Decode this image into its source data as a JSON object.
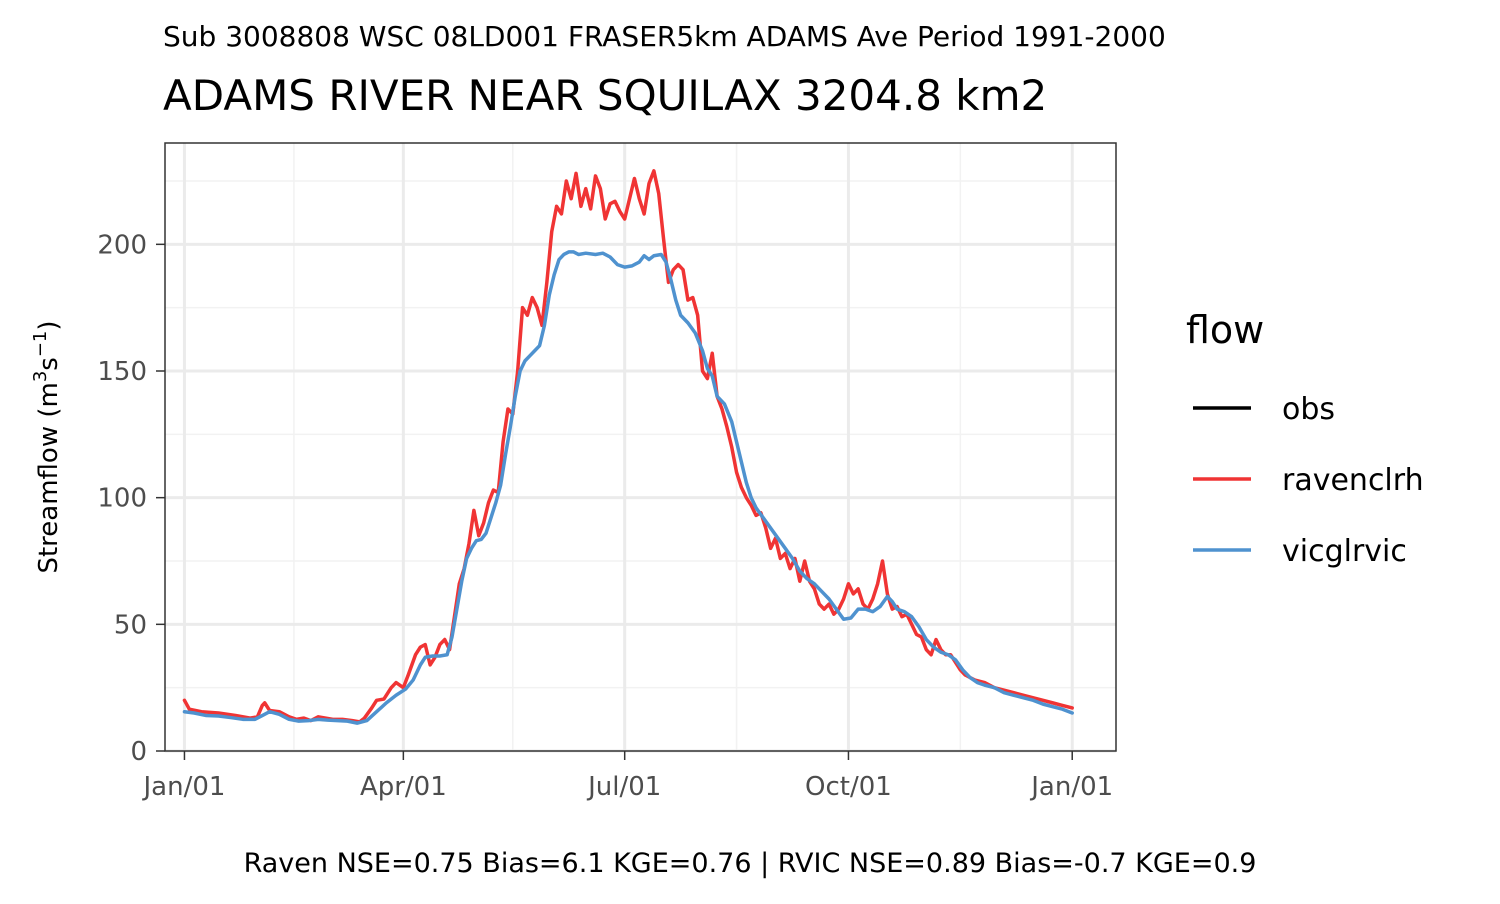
{
  "chart_data": {
    "type": "line",
    "subtitle_top": "Sub 3008808 WSC 08LD001 FRASER5km ADAMS Ave Period 1991-2000",
    "title": "ADAMS RIVER NEAR SQUILAX 3204.8 km2",
    "ylabel": "Streamflow (m",
    "ylabel_sup1": "3",
    "ylabel_mid": "s",
    "ylabel_sup2": "−1",
    "ylabel_end": ")",
    "xlabel": "",
    "footer": "Raven NSE=0.75 Bias=6.1 KGE=0.76 | RVIC NSE=0.89 Bias=-0.7 KGE=0.9",
    "ylim": [
      0,
      240
    ],
    "y_ticks": [
      0,
      50,
      100,
      150,
      200
    ],
    "x_ticks": [
      {
        "label": "Jan/01",
        "day": 1
      },
      {
        "label": "Apr/01",
        "day": 91
      },
      {
        "label": "Jul/01",
        "day": 182
      },
      {
        "label": "Oct/01",
        "day": 274
      },
      {
        "label": "Jan/01",
        "day": 366
      }
    ],
    "x_minor_days": [
      46,
      136,
      228,
      320
    ],
    "xlim_days": [
      -7,
      384
    ],
    "grid": true,
    "legend": {
      "title": "flow",
      "placement": "right",
      "entries": [
        {
          "name": "obs",
          "color": "#000000"
        },
        {
          "name": "ravenclrh",
          "color": "#f03434"
        },
        {
          "name": "vicglrvic",
          "color": "#4f92cf"
        }
      ]
    },
    "series": [
      {
        "name": "ravenclrh",
        "color": "#f03434",
        "points": [
          [
            1,
            20
          ],
          [
            3,
            16.5
          ],
          [
            8,
            15.5
          ],
          [
            15,
            15
          ],
          [
            22,
            14
          ],
          [
            28,
            13
          ],
          [
            31,
            13.5
          ],
          [
            33,
            18
          ],
          [
            34,
            19
          ],
          [
            36,
            16
          ],
          [
            40,
            15.5
          ],
          [
            44,
            13.5
          ],
          [
            47,
            12.5
          ],
          [
            50,
            13
          ],
          [
            53,
            12
          ],
          [
            56,
            13.5
          ],
          [
            59,
            13
          ],
          [
            62,
            12.5
          ],
          [
            66,
            12.5
          ],
          [
            70,
            12
          ],
          [
            73,
            11.5
          ],
          [
            75,
            13
          ],
          [
            78,
            17
          ],
          [
            80,
            20
          ],
          [
            83,
            20.5
          ],
          [
            86,
            25
          ],
          [
            88,
            27
          ],
          [
            91,
            25
          ],
          [
            93,
            30
          ],
          [
            96,
            38
          ],
          [
            98,
            41
          ],
          [
            100,
            42
          ],
          [
            102,
            34
          ],
          [
            104,
            37
          ],
          [
            106,
            42
          ],
          [
            108,
            44
          ],
          [
            110,
            40
          ],
          [
            112,
            53
          ],
          [
            114,
            66
          ],
          [
            116,
            72
          ],
          [
            118,
            82
          ],
          [
            120,
            95
          ],
          [
            122,
            85
          ],
          [
            124,
            90
          ],
          [
            126,
            98
          ],
          [
            128,
            103
          ],
          [
            130,
            102
          ],
          [
            132,
            122
          ],
          [
            134,
            135
          ],
          [
            136,
            133
          ],
          [
            138,
            150
          ],
          [
            140,
            175
          ],
          [
            142,
            172
          ],
          [
            144,
            179
          ],
          [
            146,
            175
          ],
          [
            148,
            168
          ],
          [
            150,
            185
          ],
          [
            152,
            205
          ],
          [
            154,
            215
          ],
          [
            156,
            212
          ],
          [
            158,
            225
          ],
          [
            160,
            218
          ],
          [
            162,
            228
          ],
          [
            164,
            215
          ],
          [
            166,
            222
          ],
          [
            168,
            214
          ],
          [
            170,
            227
          ],
          [
            172,
            222
          ],
          [
            174,
            210
          ],
          [
            176,
            216
          ],
          [
            178,
            217
          ],
          [
            180,
            213
          ],
          [
            182,
            210
          ],
          [
            184,
            218
          ],
          [
            186,
            226
          ],
          [
            188,
            218
          ],
          [
            190,
            212
          ],
          [
            192,
            224
          ],
          [
            194,
            229
          ],
          [
            196,
            220
          ],
          [
            198,
            202
          ],
          [
            200,
            185
          ],
          [
            202,
            190
          ],
          [
            204,
            192
          ],
          [
            206,
            190
          ],
          [
            208,
            178
          ],
          [
            210,
            179
          ],
          [
            212,
            172
          ],
          [
            214,
            150
          ],
          [
            216,
            147
          ],
          [
            218,
            157
          ],
          [
            220,
            140
          ],
          [
            222,
            135
          ],
          [
            224,
            128
          ],
          [
            226,
            120
          ],
          [
            228,
            110
          ],
          [
            230,
            104
          ],
          [
            232,
            100
          ],
          [
            234,
            97
          ],
          [
            236,
            93
          ],
          [
            238,
            94
          ],
          [
            240,
            88
          ],
          [
            242,
            80
          ],
          [
            244,
            84
          ],
          [
            246,
            76
          ],
          [
            248,
            78
          ],
          [
            250,
            72
          ],
          [
            252,
            76
          ],
          [
            254,
            67
          ],
          [
            256,
            75
          ],
          [
            258,
            67
          ],
          [
            260,
            64
          ],
          [
            262,
            58
          ],
          [
            264,
            56
          ],
          [
            266,
            58
          ],
          [
            268,
            54
          ],
          [
            270,
            56
          ],
          [
            272,
            60
          ],
          [
            274,
            66
          ],
          [
            276,
            62
          ],
          [
            278,
            64
          ],
          [
            280,
            58
          ],
          [
            282,
            56
          ],
          [
            284,
            60
          ],
          [
            286,
            66
          ],
          [
            288,
            75
          ],
          [
            290,
            62
          ],
          [
            292,
            56
          ],
          [
            294,
            57
          ],
          [
            296,
            53
          ],
          [
            298,
            54
          ],
          [
            300,
            50
          ],
          [
            302,
            46
          ],
          [
            304,
            45
          ],
          [
            306,
            40
          ],
          [
            308,
            38
          ],
          [
            310,
            44
          ],
          [
            312,
            40
          ],
          [
            314,
            38
          ],
          [
            316,
            38
          ],
          [
            318,
            35
          ],
          [
            320,
            32
          ],
          [
            322,
            30
          ],
          [
            326,
            28
          ],
          [
            330,
            27
          ],
          [
            334,
            25
          ],
          [
            338,
            24
          ],
          [
            342,
            23
          ],
          [
            346,
            22
          ],
          [
            350,
            21
          ],
          [
            354,
            20
          ],
          [
            358,
            19
          ],
          [
            362,
            18
          ],
          [
            366,
            17
          ]
        ]
      },
      {
        "name": "vicglrvic",
        "color": "#4f92cf",
        "points": [
          [
            1,
            15.5
          ],
          [
            5,
            15
          ],
          [
            10,
            14
          ],
          [
            15,
            13.8
          ],
          [
            20,
            13.2
          ],
          [
            25,
            12.5
          ],
          [
            30,
            12.5
          ],
          [
            33,
            14
          ],
          [
            36,
            15.5
          ],
          [
            40,
            14.5
          ],
          [
            44,
            12.5
          ],
          [
            48,
            11.8
          ],
          [
            52,
            12
          ],
          [
            56,
            12.5
          ],
          [
            60,
            12.2
          ],
          [
            64,
            12
          ],
          [
            68,
            11.8
          ],
          [
            72,
            11
          ],
          [
            76,
            12
          ],
          [
            80,
            15.5
          ],
          [
            84,
            19
          ],
          [
            88,
            22
          ],
          [
            92,
            24.5
          ],
          [
            95,
            28
          ],
          [
            98,
            34
          ],
          [
            100,
            37
          ],
          [
            103,
            37.5
          ],
          [
            106,
            37.5
          ],
          [
            109,
            38
          ],
          [
            111,
            45
          ],
          [
            113,
            56
          ],
          [
            115,
            67
          ],
          [
            117,
            76
          ],
          [
            119,
            80
          ],
          [
            121,
            83
          ],
          [
            123,
            83.5
          ],
          [
            125,
            86
          ],
          [
            127,
            92
          ],
          [
            129,
            98
          ],
          [
            131,
            105
          ],
          [
            133,
            117
          ],
          [
            135,
            128
          ],
          [
            137,
            140
          ],
          [
            139,
            150
          ],
          [
            141,
            154
          ],
          [
            143,
            156
          ],
          [
            145,
            158
          ],
          [
            147,
            160
          ],
          [
            149,
            168
          ],
          [
            151,
            180
          ],
          [
            153,
            188
          ],
          [
            155,
            194
          ],
          [
            157,
            196
          ],
          [
            159,
            197
          ],
          [
            161,
            197
          ],
          [
            163,
            196
          ],
          [
            166,
            196.5
          ],
          [
            170,
            196
          ],
          [
            173,
            196.5
          ],
          [
            176,
            195
          ],
          [
            179,
            192
          ],
          [
            182,
            191
          ],
          [
            185,
            191.5
          ],
          [
            188,
            193
          ],
          [
            190,
            195.5
          ],
          [
            192,
            194
          ],
          [
            194,
            195.5
          ],
          [
            197,
            196
          ],
          [
            199,
            193
          ],
          [
            201,
            186
          ],
          [
            203,
            178
          ],
          [
            205,
            172
          ],
          [
            208,
            169
          ],
          [
            211,
            165
          ],
          [
            214,
            158
          ],
          [
            216,
            151
          ],
          [
            218,
            148
          ],
          [
            220,
            140
          ],
          [
            223,
            137
          ],
          [
            226,
            130
          ],
          [
            228,
            122
          ],
          [
            230,
            114
          ],
          [
            232,
            106
          ],
          [
            234,
            100
          ],
          [
            236,
            96
          ],
          [
            239,
            92
          ],
          [
            242,
            88
          ],
          [
            245,
            84
          ],
          [
            248,
            80
          ],
          [
            251,
            76
          ],
          [
            254,
            71
          ],
          [
            257,
            68
          ],
          [
            260,
            66
          ],
          [
            263,
            63
          ],
          [
            266,
            60
          ],
          [
            269,
            56
          ],
          [
            272,
            52
          ],
          [
            275,
            52.5
          ],
          [
            278,
            56
          ],
          [
            281,
            56
          ],
          [
            284,
            55
          ],
          [
            287,
            57
          ],
          [
            290,
            61
          ],
          [
            292,
            59
          ],
          [
            294,
            56
          ],
          [
            297,
            55
          ],
          [
            300,
            53
          ],
          [
            303,
            49
          ],
          [
            306,
            44
          ],
          [
            309,
            41
          ],
          [
            312,
            39
          ],
          [
            315,
            38
          ],
          [
            318,
            36
          ],
          [
            321,
            32
          ],
          [
            324,
            29
          ],
          [
            327,
            27
          ],
          [
            330,
            26
          ],
          [
            334,
            25
          ],
          [
            338,
            23
          ],
          [
            342,
            22
          ],
          [
            346,
            21
          ],
          [
            350,
            20
          ],
          [
            354,
            18.5
          ],
          [
            358,
            17.5
          ],
          [
            362,
            16.5
          ],
          [
            366,
            15
          ]
        ]
      }
    ]
  }
}
